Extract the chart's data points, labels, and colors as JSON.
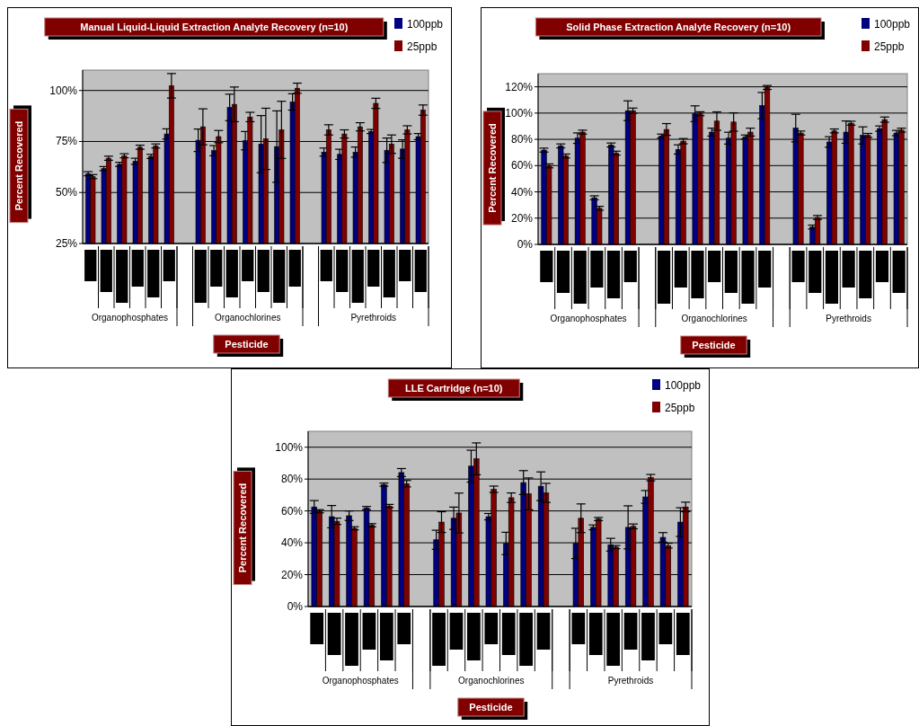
{
  "chart_data": [
    {
      "type": "bar",
      "title": "Manual Liquid-Liquid Extraction Analyte Recovery (n=10)",
      "xlabel": "Pesticide",
      "ylabel": "Percent Recovered",
      "categories": [
        null,
        null,
        null,
        null,
        null,
        null,
        null,
        null,
        null,
        null,
        null,
        null,
        null,
        null,
        null,
        null,
        null,
        null,
        null,
        null,
        null,
        null
      ],
      "series": [
        {
          "name": "100ppb",
          "color": "#000080",
          "values": [
            59.2,
            61.7,
            63.8,
            65.3,
            67.7,
            78.7,
            null,
            75.6,
            70.5,
            91.7,
            75.4,
            73.7,
            72.5,
            94.4,
            null,
            69.8,
            68.7,
            69.8,
            79.9,
            70.7,
            71.3,
            77.4
          ],
          "errors": [
            1,
            1,
            1,
            1.5,
            1,
            2.5,
            null,
            5.5,
            2.5,
            6.5,
            4.5,
            14,
            17.5,
            4,
            null,
            2,
            2.5,
            2.5,
            1,
            6,
            4.5,
            1.5
          ]
        },
        {
          "name": "25ppb",
          "color": "#800000",
          "values": [
            57.8,
            66.8,
            68,
            72.2,
            72.8,
            102.3,
            null,
            82.2,
            77.4,
            93.2,
            87,
            76.3,
            80.7,
            101.1,
            null,
            80.7,
            78.7,
            82.2,
            93.7,
            73.7,
            80.7,
            90.4
          ],
          "errors": [
            1,
            1,
            1,
            1,
            1,
            6,
            null,
            8.8,
            3,
            8.5,
            2.3,
            15,
            14,
            2.5,
            null,
            2.5,
            2,
            2,
            2.5,
            4.5,
            2,
            2.5
          ]
        }
      ],
      "ylim": [
        25,
        110
      ],
      "yticks": [
        {
          "value": 25,
          "label": "25%"
        },
        {
          "value": 50,
          "label": "50%"
        },
        {
          "value": 75,
          "label": "75%"
        },
        {
          "value": 100,
          "label": "100%"
        }
      ],
      "grid": "y",
      "legend": "top right",
      "annotations": [
        "Organophosphates",
        "Organochlorines",
        "Pyrethroids"
      ]
    },
    {
      "type": "bar",
      "title": "Solid Phase Extraction Analyte Recovery (n=10)",
      "xlabel": "Pesticide",
      "ylabel": "Percent Recovered",
      "categories": [
        null,
        null,
        null,
        null,
        null,
        null,
        null,
        null,
        null,
        null,
        null,
        null,
        null,
        null,
        null,
        null,
        null,
        null,
        null,
        null,
        null,
        null
      ],
      "series": [
        {
          "name": "100ppb",
          "color": "#000080",
          "values": [
            71.8,
            75,
            80.9,
            35.5,
            75.7,
            101.8,
            null,
            82.5,
            72.3,
            99.5,
            85.5,
            80.9,
            81.8,
            105.7,
            null,
            88.6,
            13.2,
            78,
            85.5,
            83,
            88.2,
            84.8
          ],
          "errors": [
            1.5,
            1.5,
            4,
            1.5,
            1.5,
            7.5,
            null,
            1.5,
            3.5,
            6,
            3,
            4.5,
            1.5,
            10,
            null,
            10.5,
            1.5,
            4,
            8.5,
            6.5,
            2,
            2
          ]
        },
        {
          "name": "25ppb",
          "color": "#800000",
          "values": [
            59.8,
            67.3,
            85.5,
            27.5,
            69.5,
            101.8,
            null,
            87.5,
            78.6,
            99.5,
            93.9,
            93.2,
            85.5,
            119.5,
            null,
            84.8,
            20.5,
            86.4,
            92.3,
            83,
            95,
            87
          ],
          "errors": [
            1.5,
            1.5,
            1.5,
            1.5,
            1.5,
            2,
            null,
            4.5,
            2,
            1.5,
            7,
            7,
            3,
            1.5,
            null,
            1.5,
            1.5,
            1.5,
            1.5,
            1.5,
            2,
            1.5
          ]
        }
      ],
      "ylim": [
        0,
        130
      ],
      "yticks": [
        {
          "value": 0,
          "label": "0%"
        },
        {
          "value": 20,
          "label": "20%"
        },
        {
          "value": 40,
          "label": "40%"
        },
        {
          "value": 60,
          "label": "60%"
        },
        {
          "value": 80,
          "label": "80%"
        },
        {
          "value": 100,
          "label": "100%"
        },
        {
          "value": 120,
          "label": "120%"
        }
      ],
      "grid": "y",
      "legend": "top right",
      "annotations": [
        "Organophosphates",
        "Organochlorines",
        "Pyrethroids"
      ]
    },
    {
      "type": "bar",
      "title": "LLE Cartridge (n=10)",
      "xlabel": "Pesticide",
      "ylabel": "Percent Recovered",
      "categories": [
        null,
        null,
        null,
        null,
        null,
        null,
        null,
        null,
        null,
        null,
        null,
        null,
        null,
        null,
        null,
        null,
        null,
        null,
        null,
        null,
        null,
        null
      ],
      "series": [
        {
          "name": "100ppb",
          "color": "#000080",
          "values": [
            62.5,
            56.4,
            57,
            61.8,
            76.5,
            84.1,
            null,
            41.9,
            55.4,
            88.1,
            56.4,
            39.6,
            77.8,
            75.5,
            null,
            39.6,
            49.7,
            38.8,
            49.7,
            68.8,
            43.4,
            53
          ],
          "errors": [
            4,
            7,
            3,
            1,
            1,
            2.5,
            null,
            6,
            7,
            10,
            2,
            7,
            7.5,
            9,
            null,
            9.5,
            1.5,
            4,
            13.5,
            4,
            3,
            9
          ]
        },
        {
          "name": "25ppb",
          "color": "#800000",
          "values": [
            59.8,
            53.5,
            49.1,
            51,
            63.1,
            77.1,
            null,
            53,
            58.7,
            92.7,
            73.6,
            68.3,
            70.7,
            71.3,
            null,
            55.4,
            54.9,
            37.3,
            50.3,
            80.9,
            38.2,
            62.5
          ],
          "errors": [
            1,
            2,
            1,
            1,
            1,
            2,
            null,
            6.5,
            12.5,
            10,
            2,
            3,
            10,
            6,
            null,
            9,
            1,
            1,
            1.5,
            2,
            1.5,
            3
          ]
        }
      ],
      "ylim": [
        0,
        110
      ],
      "yticks": [
        {
          "value": 0,
          "label": "0%"
        },
        {
          "value": 20,
          "label": "20%"
        },
        {
          "value": 40,
          "label": "40%"
        },
        {
          "value": 60,
          "label": "60%"
        },
        {
          "value": 80,
          "label": "80%"
        },
        {
          "value": 100,
          "label": "100%"
        }
      ],
      "grid": "y",
      "legend": "top right",
      "annotations": [
        "Organophosphates",
        "Organochlorines",
        "Pyrethroids"
      ]
    }
  ]
}
